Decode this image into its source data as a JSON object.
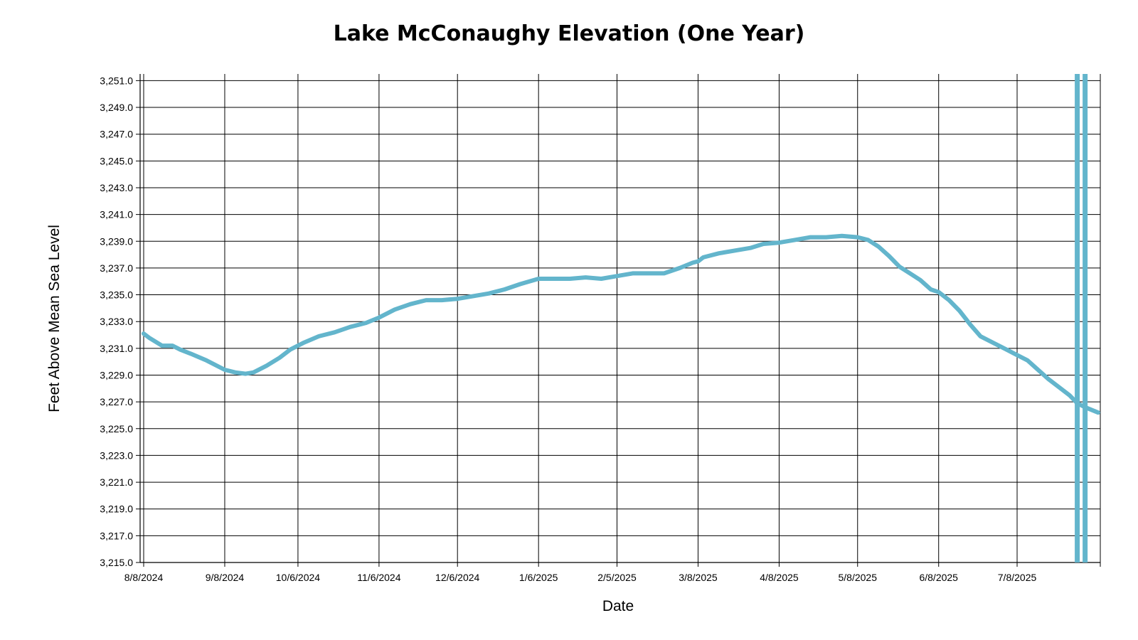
{
  "chart_data": {
    "type": "line",
    "title": "Lake McConaughy Elevation (One Year)",
    "xlabel": "Date",
    "ylabel": "Feet Above Mean Sea Level",
    "x_ticks": [
      "8/8/2024",
      "9/8/2024",
      "10/6/2024",
      "11/6/2024",
      "12/6/2024",
      "1/6/2025",
      "2/5/2025",
      "3/8/2025",
      "4/8/2025",
      "5/8/2025",
      "6/8/2025",
      "7/8/2025"
    ],
    "y_ticks": [
      "3,215.0",
      "3,217.0",
      "3,219.0",
      "3,221.0",
      "3,223.0",
      "3,225.0",
      "3,227.0",
      "3,229.0",
      "3,231.0",
      "3,233.0",
      "3,235.0",
      "3,237.0",
      "3,239.0",
      "3,241.0",
      "3,243.0",
      "3,245.0",
      "3,247.0",
      "3,249.0",
      "3,251.0"
    ],
    "ylim": [
      3215,
      3251.5
    ],
    "xlim": [
      "2024-08-08",
      "2025-08-08"
    ],
    "grid": true,
    "line_color": "#63b5cc",
    "series": [
      {
        "values": [
          [
            "2024-08-08",
            3232.1
          ],
          [
            "2024-08-10",
            3231.8
          ],
          [
            "2024-08-15",
            3231.2
          ],
          [
            "2024-08-19",
            3231.2
          ],
          [
            "2024-08-22",
            3230.9
          ],
          [
            "2024-08-26",
            3230.6
          ],
          [
            "2024-09-01",
            3230.1
          ],
          [
            "2024-09-08",
            3229.4
          ],
          [
            "2024-09-12",
            3229.2
          ],
          [
            "2024-09-16",
            3229.1
          ],
          [
            "2024-09-19",
            3229.2
          ],
          [
            "2024-09-24",
            3229.7
          ],
          [
            "2024-09-29",
            3230.3
          ],
          [
            "2024-10-03",
            3230.9
          ],
          [
            "2024-10-08",
            3231.4
          ],
          [
            "2024-10-14",
            3231.9
          ],
          [
            "2024-10-20",
            3232.2
          ],
          [
            "2024-10-26",
            3232.6
          ],
          [
            "2024-11-01",
            3232.9
          ],
          [
            "2024-11-06",
            3233.3
          ],
          [
            "2024-11-12",
            3233.9
          ],
          [
            "2024-11-18",
            3234.3
          ],
          [
            "2024-11-24",
            3234.6
          ],
          [
            "2024-11-30",
            3234.6
          ],
          [
            "2024-12-06",
            3234.7
          ],
          [
            "2024-12-12",
            3234.9
          ],
          [
            "2024-12-18",
            3235.1
          ],
          [
            "2024-12-24",
            3235.4
          ],
          [
            "2024-12-30",
            3235.8
          ],
          [
            "2025-01-06",
            3236.2
          ],
          [
            "2025-01-12",
            3236.2
          ],
          [
            "2025-01-18",
            3236.2
          ],
          [
            "2025-01-24",
            3236.3
          ],
          [
            "2025-01-30",
            3236.2
          ],
          [
            "2025-02-05",
            3236.4
          ],
          [
            "2025-02-11",
            3236.6
          ],
          [
            "2025-02-17",
            3236.6
          ],
          [
            "2025-02-23",
            3236.6
          ],
          [
            "2025-03-01",
            3237.0
          ],
          [
            "2025-03-06",
            3237.4
          ],
          [
            "2025-03-08",
            3237.5
          ],
          [
            "2025-03-10",
            3237.8
          ],
          [
            "2025-03-16",
            3238.1
          ],
          [
            "2025-03-22",
            3238.3
          ],
          [
            "2025-03-28",
            3238.5
          ],
          [
            "2025-04-02",
            3238.8
          ],
          [
            "2025-04-08",
            3238.9
          ],
          [
            "2025-04-14",
            3239.1
          ],
          [
            "2025-04-20",
            3239.3
          ],
          [
            "2025-04-26",
            3239.3
          ],
          [
            "2025-05-02",
            3239.4
          ],
          [
            "2025-05-08",
            3239.3
          ],
          [
            "2025-05-12",
            3239.1
          ],
          [
            "2025-05-16",
            3238.6
          ],
          [
            "2025-05-20",
            3237.9
          ],
          [
            "2025-05-24",
            3237.1
          ],
          [
            "2025-05-28",
            3236.6
          ],
          [
            "2025-06-01",
            3236.1
          ],
          [
            "2025-06-05",
            3235.4
          ],
          [
            "2025-06-08",
            3235.2
          ],
          [
            "2025-06-12",
            3234.6
          ],
          [
            "2025-06-16",
            3233.8
          ],
          [
            "2025-06-20",
            3232.8
          ],
          [
            "2025-06-24",
            3231.9
          ],
          [
            "2025-06-30",
            3231.3
          ],
          [
            "2025-07-04",
            3230.9
          ],
          [
            "2025-07-08",
            3230.5
          ],
          [
            "2025-07-12",
            3230.1
          ],
          [
            "2025-07-16",
            3229.4
          ],
          [
            "2025-07-20",
            3228.7
          ],
          [
            "2025-07-24",
            3228.1
          ],
          [
            "2025-07-28",
            3227.5
          ],
          [
            "2025-07-31",
            3226.9
          ],
          [
            "2025-08-03",
            3226.6
          ],
          [
            "2025-08-08",
            3226.2
          ]
        ]
      }
    ]
  }
}
